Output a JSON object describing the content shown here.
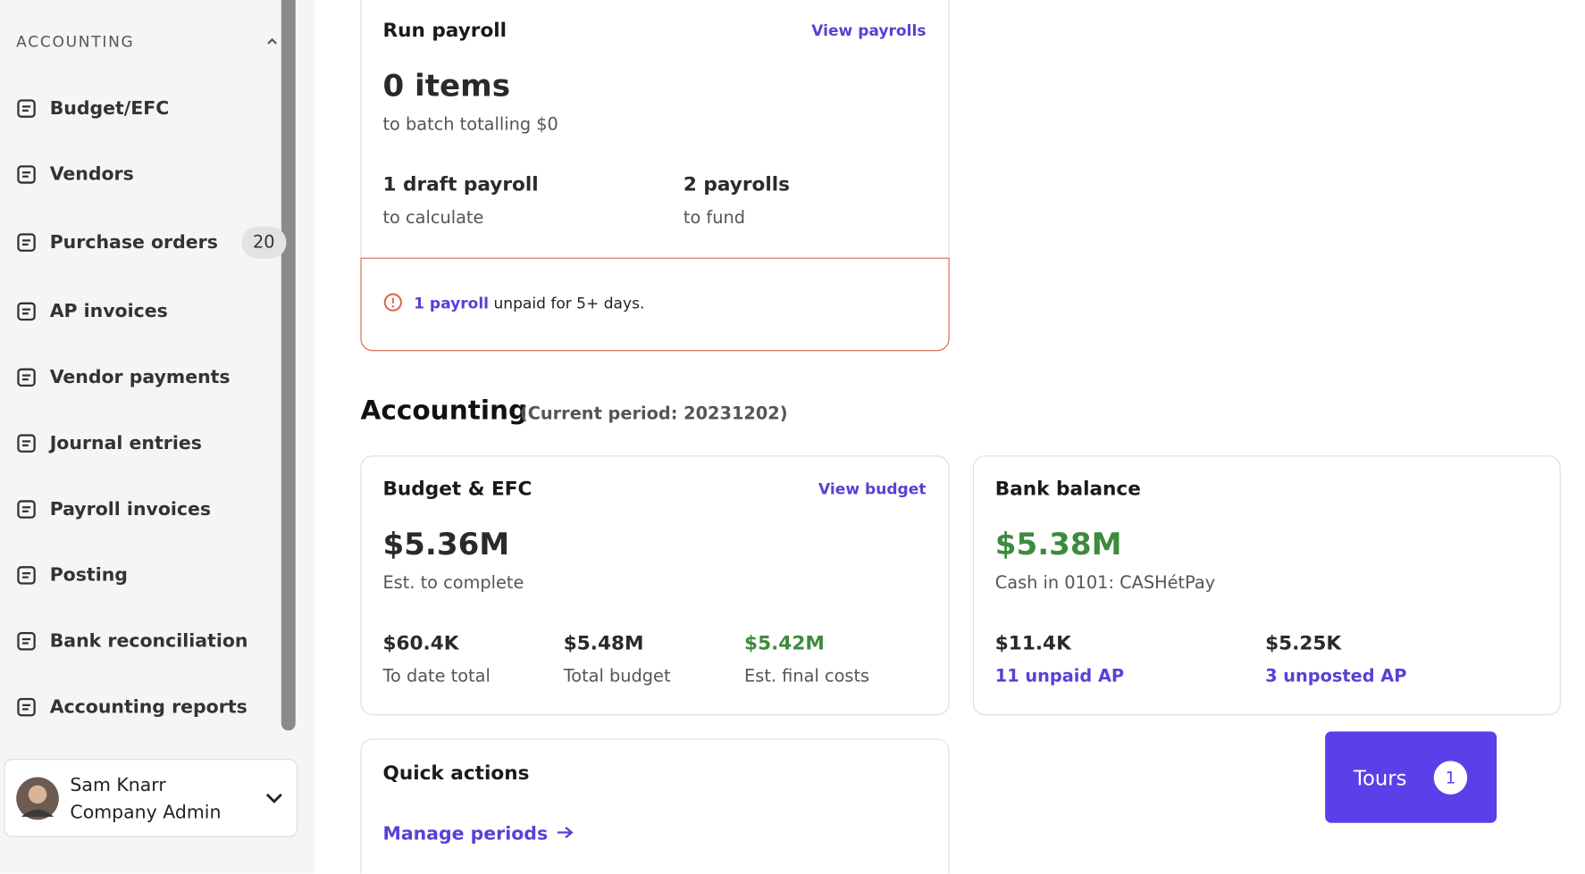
{
  "sidebar": {
    "section_title": "ACCOUNTING",
    "items": [
      {
        "label": "Budget/EFC"
      },
      {
        "label": "Vendors"
      },
      {
        "label": "Purchase orders",
        "badge": "20"
      },
      {
        "label": "AP invoices"
      },
      {
        "label": "Vendor payments"
      },
      {
        "label": "Journal entries"
      },
      {
        "label": "Payroll invoices"
      },
      {
        "label": "Posting"
      },
      {
        "label": "Bank reconciliation"
      },
      {
        "label": "Accounting reports"
      }
    ],
    "user": {
      "name": "Sam Knarr",
      "role": "Company Admin"
    }
  },
  "payroll_card": {
    "title": "Run payroll",
    "link": "View payrolls",
    "headline": "0 items",
    "subtitle": "to batch totalling $0",
    "stats": [
      {
        "value": "1 draft payroll",
        "label": "to calculate"
      },
      {
        "value": "2 payrolls",
        "label": "to fund"
      }
    ],
    "alert": {
      "link": "1 payroll",
      "text": "unpaid for 5+ days."
    }
  },
  "accounting": {
    "title": "Accounting",
    "period": "(Current period: 20231202)"
  },
  "budget_card": {
    "title": "Budget & EFC",
    "link": "View budget",
    "headline": "$5.36M",
    "subtitle": "Est. to complete",
    "stats": [
      {
        "value": "$60.4K",
        "label": "To date total"
      },
      {
        "value": "$5.48M",
        "label": "Total budget"
      },
      {
        "value": "$5.42M",
        "label": "Est. final costs"
      }
    ]
  },
  "bank_card": {
    "title": "Bank balance",
    "headline": "$5.38M",
    "subtitle": "Cash in 0101: CASHétPay",
    "stats": [
      {
        "value": "$11.4K",
        "label": "11 unpaid AP"
      },
      {
        "value": "$5.25K",
        "label": "3 unposted AP"
      }
    ]
  },
  "quick_actions": {
    "title": "Quick actions",
    "link": "Manage periods"
  },
  "tours": {
    "label": "Tours",
    "count": "1"
  }
}
